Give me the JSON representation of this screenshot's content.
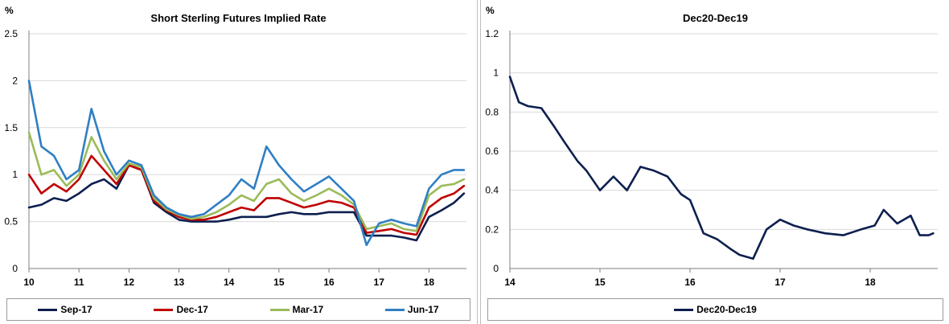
{
  "chart_data": [
    {
      "type": "line",
      "title": "Short Sterling Futures Implied Rate",
      "ylabel": "%",
      "xlabel": "",
      "ylim": [
        0,
        2.5
      ],
      "xlim": [
        10,
        18.75
      ],
      "yticks": [
        "0",
        "0.5",
        "1",
        "1.5",
        "2",
        "2.5"
      ],
      "xticks": [
        "10",
        "11",
        "12",
        "13",
        "14",
        "15",
        "16",
        "17",
        "18"
      ],
      "legend_position": "bottom",
      "series": [
        {
          "name": "Sep-17",
          "color": "#0d1f4f",
          "x": [
            10.0,
            10.25,
            10.5,
            10.75,
            11.0,
            11.25,
            11.5,
            11.75,
            12.0,
            12.25,
            12.5,
            12.75,
            13.0,
            13.25,
            13.5,
            13.75,
            14.0,
            14.25,
            14.5,
            14.75,
            15.0,
            15.25,
            15.5,
            15.75,
            16.0,
            16.25,
            16.5,
            16.75,
            17.0,
            17.25,
            17.5,
            17.75,
            18.0,
            18.25,
            18.5,
            18.7
          ],
          "values": [
            0.65,
            0.68,
            0.75,
            0.72,
            0.8,
            0.9,
            0.95,
            0.85,
            1.1,
            1.05,
            0.7,
            0.6,
            0.52,
            0.5,
            0.5,
            0.5,
            0.52,
            0.55,
            0.55,
            0.55,
            0.58,
            0.6,
            0.58,
            0.58,
            0.6,
            0.6,
            0.6,
            0.35,
            0.35,
            0.35,
            0.33,
            0.3,
            0.55,
            0.62,
            0.7,
            0.8
          ]
        },
        {
          "name": "Dec-17",
          "color": "#c00000",
          "x": [
            10.0,
            10.25,
            10.5,
            10.75,
            11.0,
            11.25,
            11.5,
            11.75,
            12.0,
            12.25,
            12.5,
            12.75,
            13.0,
            13.25,
            13.5,
            13.75,
            14.0,
            14.25,
            14.5,
            14.75,
            15.0,
            15.25,
            15.5,
            15.75,
            16.0,
            16.25,
            16.5,
            16.75,
            17.0,
            17.25,
            17.5,
            17.75,
            18.0,
            18.25,
            18.5,
            18.7
          ],
          "values": [
            1.0,
            0.8,
            0.9,
            0.82,
            0.95,
            1.2,
            1.05,
            0.9,
            1.1,
            1.05,
            0.72,
            0.62,
            0.55,
            0.52,
            0.52,
            0.55,
            0.6,
            0.65,
            0.62,
            0.75,
            0.75,
            0.7,
            0.65,
            0.68,
            0.72,
            0.7,
            0.65,
            0.38,
            0.4,
            0.42,
            0.38,
            0.36,
            0.65,
            0.75,
            0.8,
            0.88
          ]
        },
        {
          "name": "Mar-17",
          "color": "#9bbb59",
          "x": [
            10.0,
            10.25,
            10.5,
            10.75,
            11.0,
            11.25,
            11.5,
            11.75,
            12.0,
            12.25,
            12.5,
            12.75,
            13.0,
            13.25,
            13.5,
            13.75,
            14.0,
            14.25,
            14.5,
            14.75,
            15.0,
            15.25,
            15.5,
            15.75,
            16.0,
            16.25,
            16.5,
            16.75,
            17.0,
            17.25,
            17.5,
            17.75,
            18.0,
            18.25,
            18.5,
            18.7
          ],
          "values": [
            1.45,
            1.0,
            1.05,
            0.88,
            1.0,
            1.4,
            1.15,
            0.95,
            1.12,
            1.08,
            0.75,
            0.63,
            0.57,
            0.53,
            0.55,
            0.6,
            0.68,
            0.78,
            0.72,
            0.9,
            0.95,
            0.8,
            0.72,
            0.78,
            0.85,
            0.78,
            0.68,
            0.42,
            0.45,
            0.48,
            0.42,
            0.4,
            0.78,
            0.88,
            0.9,
            0.95
          ]
        },
        {
          "name": "Jun-17",
          "color": "#2e7fc4",
          "x": [
            10.0,
            10.25,
            10.5,
            10.75,
            11.0,
            11.25,
            11.5,
            11.75,
            12.0,
            12.25,
            12.5,
            12.75,
            13.0,
            13.25,
            13.5,
            13.75,
            14.0,
            14.25,
            14.5,
            14.75,
            15.0,
            15.25,
            15.5,
            15.75,
            16.0,
            16.25,
            16.5,
            16.75,
            17.0,
            17.25,
            17.5,
            17.75,
            18.0,
            18.25,
            18.5,
            18.7
          ],
          "values": [
            2.0,
            1.3,
            1.2,
            0.95,
            1.05,
            1.7,
            1.25,
            1.0,
            1.15,
            1.1,
            0.78,
            0.65,
            0.58,
            0.55,
            0.58,
            0.68,
            0.78,
            0.95,
            0.85,
            1.3,
            1.1,
            0.95,
            0.82,
            0.9,
            0.98,
            0.85,
            0.72,
            0.25,
            0.48,
            0.52,
            0.48,
            0.45,
            0.85,
            1.0,
            1.05,
            1.05
          ]
        }
      ]
    },
    {
      "type": "line",
      "title": "Dec20-Dec19",
      "ylabel": "%",
      "xlabel": "",
      "ylim": [
        0,
        1.2
      ],
      "xlim": [
        14,
        18.75
      ],
      "yticks": [
        "0",
        "0.2",
        "0.4",
        "0.6",
        "0.8",
        "1",
        "1.2"
      ],
      "xticks": [
        "14",
        "15",
        "16",
        "17",
        "18"
      ],
      "legend_position": "bottom",
      "series": [
        {
          "name": "Dec20-Dec19",
          "color": "#0d1f4f",
          "x": [
            14.0,
            14.1,
            14.2,
            14.35,
            14.5,
            14.6,
            14.75,
            14.85,
            15.0,
            15.15,
            15.3,
            15.45,
            15.6,
            15.75,
            15.9,
            16.0,
            16.15,
            16.3,
            16.45,
            16.55,
            16.7,
            16.85,
            17.0,
            17.15,
            17.3,
            17.5,
            17.7,
            17.9,
            18.05,
            18.15,
            18.3,
            18.45,
            18.55,
            18.65,
            18.7
          ],
          "values": [
            0.98,
            0.85,
            0.83,
            0.82,
            0.72,
            0.65,
            0.55,
            0.5,
            0.4,
            0.47,
            0.4,
            0.52,
            0.5,
            0.47,
            0.38,
            0.35,
            0.18,
            0.15,
            0.1,
            0.07,
            0.05,
            0.2,
            0.25,
            0.22,
            0.2,
            0.18,
            0.17,
            0.2,
            0.22,
            0.3,
            0.23,
            0.27,
            0.17,
            0.17,
            0.18
          ]
        }
      ]
    }
  ]
}
